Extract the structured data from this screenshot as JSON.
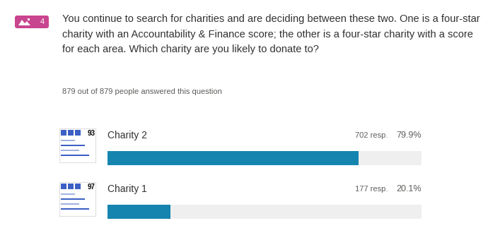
{
  "header": {
    "question_number": 4,
    "question": "You continue to search for charities and are deciding between these two. One is a four-star charity with an Accountability & Finance score; the other is a four-star charity with a score for each area. Which charity are you likely to donate to?",
    "responses_note": "879 out of 879 people answered this question"
  },
  "chart_data": {
    "type": "bar",
    "orientation": "horizontal",
    "categories": [
      "Charity 2",
      "Charity 1"
    ],
    "values": [
      79.9,
      20.1
    ],
    "value_labels": [
      "79.9%",
      "20.1%"
    ],
    "response_labels": [
      "702 resp.",
      "177 resp."
    ],
    "thumbnail_scores": [
      93,
      97
    ],
    "color": "#1584ae",
    "xlim": [
      0,
      100
    ],
    "xticks": [],
    "tick_labels": false,
    "data_labels": true
  }
}
